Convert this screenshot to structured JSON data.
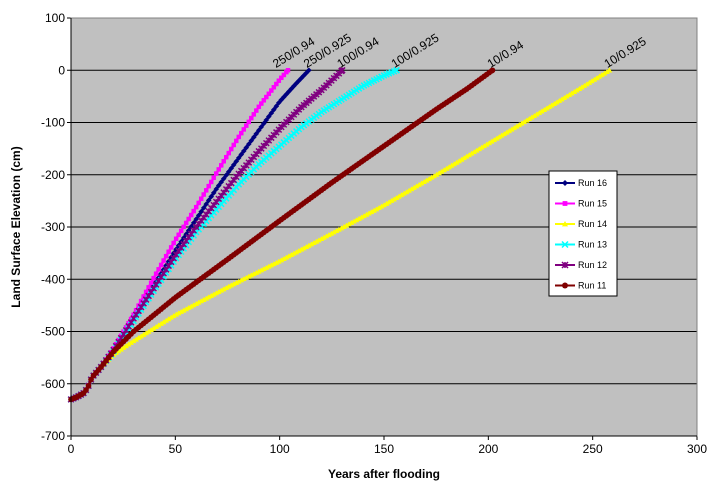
{
  "chart_data": {
    "type": "line",
    "title": "",
    "xlabel": "Years after flooding",
    "ylabel": "Land Surface Elevation (cm)",
    "xlim": [
      0,
      300
    ],
    "ylim": [
      -700,
      100
    ],
    "xticks": [
      0,
      50,
      100,
      150,
      200,
      250,
      300
    ],
    "yticks": [
      100,
      0,
      -100,
      -200,
      -300,
      -400,
      -500,
      -600,
      -700
    ],
    "grid": "horizontal",
    "plot_background": "#c0c0c0",
    "legend_position": "right",
    "series": [
      {
        "name": "Run 16",
        "color": "#000080",
        "marker": "diamond",
        "annotation": "250/0.925",
        "points": [
          [
            0,
            -630
          ],
          [
            3,
            -625
          ],
          [
            6,
            -618
          ],
          [
            8,
            -608
          ],
          [
            10,
            -588
          ],
          [
            14,
            -570
          ],
          [
            20,
            -540
          ],
          [
            30,
            -475
          ],
          [
            40,
            -410
          ],
          [
            50,
            -345
          ],
          [
            60,
            -285
          ],
          [
            70,
            -225
          ],
          [
            80,
            -170
          ],
          [
            90,
            -115
          ],
          [
            100,
            -60
          ],
          [
            108,
            -25
          ],
          [
            114,
            0
          ]
        ]
      },
      {
        "name": "Run 15",
        "color": "#ff00ff",
        "marker": "square",
        "annotation": "250/0.94",
        "points": [
          [
            0,
            -630
          ],
          [
            3,
            -625
          ],
          [
            6,
            -618
          ],
          [
            8,
            -608
          ],
          [
            10,
            -588
          ],
          [
            14,
            -570
          ],
          [
            20,
            -535
          ],
          [
            30,
            -468
          ],
          [
            40,
            -395
          ],
          [
            50,
            -325
          ],
          [
            60,
            -262
          ],
          [
            70,
            -195
          ],
          [
            80,
            -130
          ],
          [
            90,
            -70
          ],
          [
            100,
            -18
          ],
          [
            104,
            0
          ]
        ]
      },
      {
        "name": "Run 14",
        "color": "#ffff00",
        "marker": "triangle",
        "annotation": "10/0.925",
        "points": [
          [
            0,
            -630
          ],
          [
            3,
            -625
          ],
          [
            6,
            -618
          ],
          [
            8,
            -608
          ],
          [
            10,
            -588
          ],
          [
            14,
            -570
          ],
          [
            20,
            -545
          ],
          [
            30,
            -518
          ],
          [
            50,
            -468
          ],
          [
            75,
            -415
          ],
          [
            100,
            -365
          ],
          [
            125,
            -312
          ],
          [
            150,
            -258
          ],
          [
            175,
            -200
          ],
          [
            200,
            -140
          ],
          [
            225,
            -80
          ],
          [
            245,
            -32
          ],
          [
            258,
            0
          ]
        ]
      },
      {
        "name": "Run 13",
        "color": "#00ffff",
        "marker": "x",
        "annotation": "100/0.925",
        "points": [
          [
            0,
            -630
          ],
          [
            3,
            -625
          ],
          [
            6,
            -618
          ],
          [
            8,
            -608
          ],
          [
            10,
            -588
          ],
          [
            14,
            -570
          ],
          [
            20,
            -540
          ],
          [
            30,
            -480
          ],
          [
            40,
            -420
          ],
          [
            50,
            -362
          ],
          [
            60,
            -310
          ],
          [
            70,
            -265
          ],
          [
            80,
            -220
          ],
          [
            90,
            -180
          ],
          [
            100,
            -145
          ],
          [
            110,
            -110
          ],
          [
            120,
            -80
          ],
          [
            130,
            -55
          ],
          [
            140,
            -30
          ],
          [
            150,
            -10
          ],
          [
            156,
            0
          ]
        ]
      },
      {
        "name": "Run 12",
        "color": "#800080",
        "marker": "star",
        "annotation": "100/0.94",
        "points": [
          [
            0,
            -630
          ],
          [
            3,
            -625
          ],
          [
            6,
            -618
          ],
          [
            8,
            -608
          ],
          [
            10,
            -588
          ],
          [
            14,
            -570
          ],
          [
            20,
            -538
          ],
          [
            30,
            -475
          ],
          [
            40,
            -415
          ],
          [
            50,
            -355
          ],
          [
            60,
            -300
          ],
          [
            70,
            -250
          ],
          [
            80,
            -200
          ],
          [
            90,
            -155
          ],
          [
            100,
            -112
          ],
          [
            110,
            -72
          ],
          [
            120,
            -38
          ],
          [
            130,
            0
          ]
        ]
      },
      {
        "name": "Run 11",
        "color": "#800000",
        "marker": "circle",
        "annotation": "10/0.94",
        "points": [
          [
            0,
            -630
          ],
          [
            3,
            -625
          ],
          [
            6,
            -618
          ],
          [
            8,
            -608
          ],
          [
            10,
            -588
          ],
          [
            14,
            -570
          ],
          [
            20,
            -540
          ],
          [
            30,
            -500
          ],
          [
            50,
            -435
          ],
          [
            75,
            -362
          ],
          [
            100,
            -288
          ],
          [
            125,
            -215
          ],
          [
            150,
            -145
          ],
          [
            175,
            -75
          ],
          [
            190,
            -35
          ],
          [
            202,
            0
          ]
        ]
      }
    ]
  }
}
